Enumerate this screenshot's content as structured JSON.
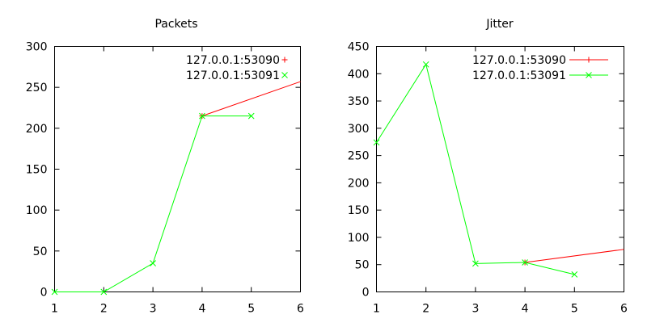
{
  "chart_data": [
    {
      "type": "line",
      "title": "Packets",
      "xlabel": "",
      "ylabel": "",
      "xlim": [
        1,
        6
      ],
      "ylim": [
        0,
        300
      ],
      "x_ticks": [
        "1",
        "2",
        "3",
        "4",
        "5",
        "6"
      ],
      "y_ticks": [
        "0",
        "50",
        "100",
        "150",
        "200",
        "250",
        "300"
      ],
      "grid": false,
      "legend_position": "top-right",
      "series": [
        {
          "name": "127.0.0.1:53090",
          "color": "#ff0000",
          "marker": "plus",
          "x": [
            4,
            6
          ],
          "y": [
            215,
            257
          ]
        },
        {
          "name": "127.0.0.1:53091",
          "color": "#00ff00",
          "marker": "cross",
          "x": [
            1,
            2,
            3,
            4,
            5
          ],
          "y": [
            0,
            0,
            35,
            215,
            215
          ]
        }
      ]
    },
    {
      "type": "line",
      "title": "Jitter",
      "xlabel": "",
      "ylabel": "",
      "xlim": [
        1,
        6
      ],
      "ylim": [
        0,
        450
      ],
      "x_ticks": [
        "1",
        "2",
        "3",
        "4",
        "5",
        "6"
      ],
      "y_ticks": [
        "0",
        "50",
        "100",
        "150",
        "200",
        "250",
        "300",
        "350",
        "400",
        "450"
      ],
      "grid": false,
      "legend_position": "top-right",
      "series": [
        {
          "name": "127.0.0.1:53090",
          "color": "#ff0000",
          "marker": "plus",
          "x": [
            4,
            6
          ],
          "y": [
            54,
            78
          ]
        },
        {
          "name": "127.0.0.1:53091",
          "color": "#00ff00",
          "marker": "cross",
          "x": [
            1,
            2,
            3,
            4,
            5
          ],
          "y": [
            274,
            417,
            52,
            54,
            32
          ]
        }
      ]
    }
  ]
}
